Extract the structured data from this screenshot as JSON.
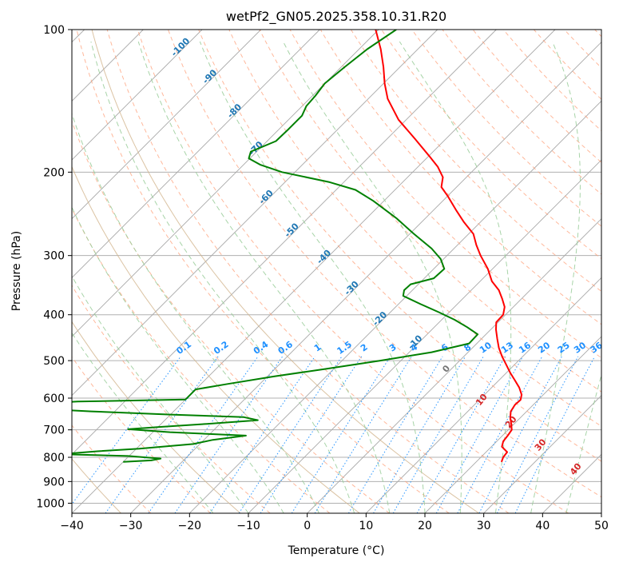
{
  "chart_data": {
    "type": "line",
    "chart_kind": "skew-t log-p",
    "title": "wetPf2_GN05.2025.358.10.31.R20",
    "xlabel": "Temperature (°C)",
    "ylabel": "Pressure (hPa)",
    "xlim": [
      -40,
      50
    ],
    "ylim": [
      1050,
      100
    ],
    "yscale": "log",
    "grid": true,
    "x_ticks": [
      -40,
      -30,
      -20,
      -10,
      0,
      10,
      20,
      30,
      40,
      50
    ],
    "x_tick_labels": [
      "−40",
      "−30",
      "−20",
      "−10",
      "0",
      "10",
      "20",
      "30",
      "40",
      "50"
    ],
    "y_ticks": [
      100,
      200,
      300,
      400,
      500,
      600,
      700,
      800,
      900,
      1000
    ],
    "colors": {
      "temperature": "#ff0000",
      "dewpoint": "#008000",
      "isotherm": "#999999",
      "dry_adiabat": "#ffa07a",
      "moist_adiabat": "#99cc99",
      "mixing_ratio": "#1e90ff",
      "isentrope": "#d2b48c"
    },
    "series": [
      {
        "key": "temperature",
        "p": [
          818,
          800,
          780,
          760,
          740,
          720,
          700,
          680,
          660,
          640,
          620,
          605,
          590,
          570,
          550,
          530,
          510,
          490,
          470,
          450,
          430,
          415,
          400,
          385,
          370,
          355,
          340,
          320,
          300,
          285,
          270,
          255,
          240,
          225,
          215,
          205,
          195,
          185,
          170,
          155,
          140,
          130,
          120,
          110,
          100
        ],
        "t": [
          24.3,
          23.8,
          23.6,
          21.8,
          21.1,
          20.9,
          20.6,
          19.5,
          18.3,
          17.3,
          16.9,
          17.0,
          16.3,
          14.7,
          12.7,
          10.6,
          8.6,
          6.5,
          4.5,
          2.7,
          0.9,
          -0.3,
          -0.4,
          -1.5,
          -3.3,
          -5.3,
          -8.0,
          -10.8,
          -14.3,
          -16.8,
          -19.2,
          -22.8,
          -26.3,
          -29.9,
          -32.6,
          -34.0,
          -36.6,
          -39.9,
          -45.3,
          -51.3,
          -56.7,
          -59.8,
          -62.8,
          -66.3,
          -70.5
        ]
      },
      {
        "key": "dewpoint",
        "p": [
          818,
          812,
          805,
          795,
          788,
          777,
          767,
          750,
          735,
          720,
          708,
          698,
          690,
          680,
          668,
          658,
          650,
          640,
          630,
          620,
          610,
          604,
          590,
          575,
          560,
          540,
          520,
          500,
          480,
          460,
          440,
          425,
          410,
          395,
          380,
          365,
          355,
          345,
          335,
          320,
          305,
          290,
          270,
          250,
          230,
          218,
          210,
          200,
          193,
          187,
          181,
          172,
          162,
          152,
          145,
          138,
          130,
          120,
          110,
          100
        ],
        "t": [
          -40.0,
          -35.5,
          -34.2,
          -40.2,
          -52.0,
          -46.2,
          -39.5,
          -31.1,
          -28.5,
          -23.6,
          -37.1,
          -44.7,
          -39.6,
          -32.2,
          -24.2,
          -27.1,
          -39.9,
          -54.0,
          -65.8,
          -70.0,
          -58.0,
          -40.0,
          -40.0,
          -40.0,
          -35.5,
          -28.9,
          -21.2,
          -13.5,
          -6.2,
          -1.3,
          -1.4,
          -4.4,
          -7.8,
          -11.8,
          -16.2,
          -20.6,
          -21.4,
          -21.3,
          -18.4,
          -18.2,
          -20.5,
          -23.8,
          -29.3,
          -35.0,
          -41.8,
          -46.7,
          -52.4,
          -62.2,
          -67.1,
          -70.2,
          -71.0,
          -68.5,
          -68.4,
          -68.4,
          -69.3,
          -69.5,
          -70.0,
          -69.4,
          -68.6,
          -67.0
        ]
      }
    ],
    "dry_adiabat_labels": [
      "-100",
      "-90",
      "-80",
      "-70",
      "-60",
      "-50",
      "-40",
      "-30",
      "-20",
      "-10"
    ],
    "moist_adiabat_labels": [
      "0",
      "10",
      "20",
      "30",
      "40"
    ],
    "mixing_ratio_labels": [
      "0.1",
      "0.2",
      "0.4",
      "0.6",
      "1",
      "1.5",
      "2",
      "3",
      "4",
      "6",
      "8",
      "10",
      "13",
      "16",
      "20",
      "25",
      "30",
      "36"
    ]
  }
}
